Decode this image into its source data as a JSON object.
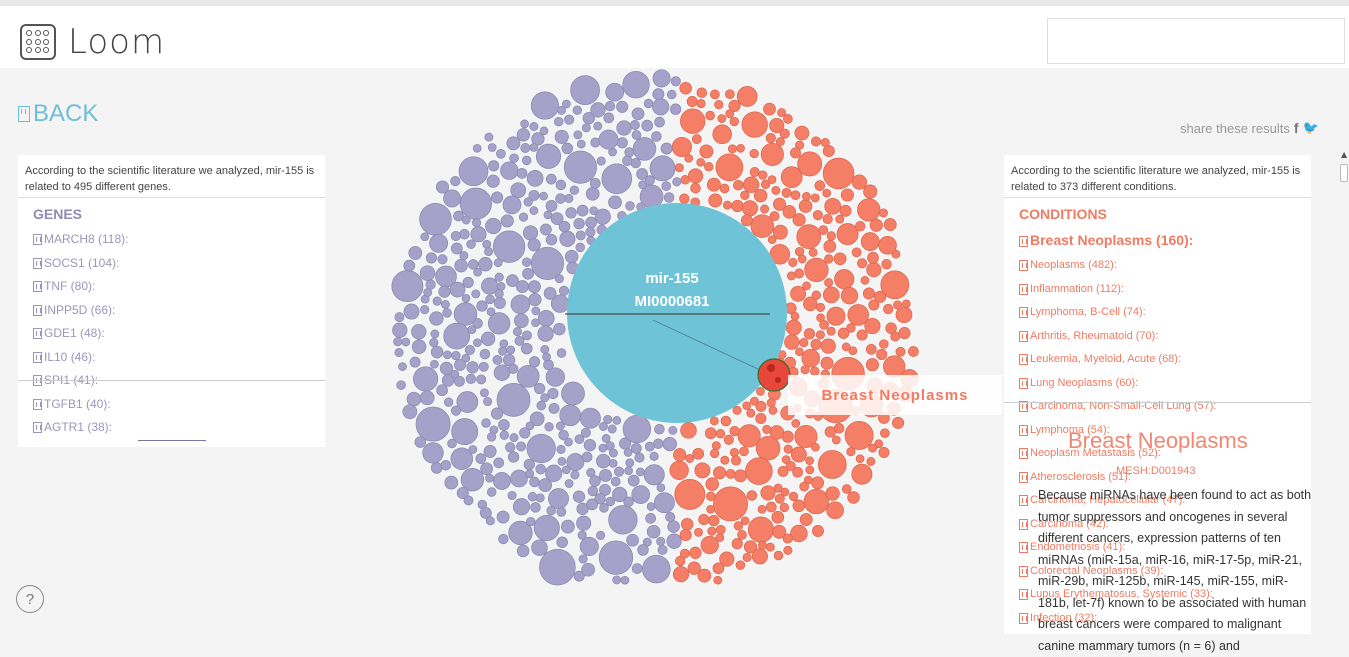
{
  "app": {
    "logo_text": "Loom"
  },
  "nav": {
    "back_label": "BACK"
  },
  "share": {
    "label": "share these results",
    "facebook": "f",
    "twitter": "🐦"
  },
  "genes_panel": {
    "intro": "According to the scientific literature we analyzed, mir-155 is related to 495 different genes.",
    "title": "GENES",
    "items": [
      "MARCH8 (118):",
      "SOCS1 (104):",
      "TNF (80):",
      "INPP5D (66):",
      "GDE1 (48):",
      "IL10 (46):",
      "SPI1 (41):",
      "TGFB1 (40):",
      "AGTR1 (38):"
    ]
  },
  "conditions_panel": {
    "intro": "According to the scientific literature we analyzed, mir-155 is related to 373 different conditions.",
    "title": "CONDITIONS",
    "active": "Breast Neoplasms (160):",
    "items": [
      "Neoplasms (482):",
      "Inflammation (112):",
      "Lymphoma, B-Cell (74):",
      "Arthritis, Rheumatoid (70):",
      "Leukemia, Myeloid, Acute (68):",
      "Lung Neoplasms (60):",
      "Carcinoma, Non-Small-Cell Lung (57):",
      "Lymphoma (54):",
      "Neoplasm Metastasis (52):",
      "Atherosclerosis (51):",
      "Carcinoma, Hepatocellular (47):",
      "Carcinoma (42):",
      "Endometriosis (41):",
      "Colorectal Neoplasms (39):",
      "Lupus Erythematosus, Systemic (33):",
      "Infection (32):"
    ]
  },
  "visualization": {
    "center_name": "mir-155",
    "center_id": "MI0000681",
    "hover_label": "Breast Neoplasms",
    "colors": {
      "genes": "#a5a1c8",
      "conditions": "#f47e66",
      "center": "#6ec4d6",
      "highlight": "#e8473b"
    }
  },
  "detail": {
    "title": "Breast Neoplasms",
    "mesh": "MESH:D001943",
    "text": "Because miRNAs have been found to act as both tumor suppressors and oncogenes in several different cancers, expression patterns of ten miRNAs (miR-15a, miR-16, miR-17-5p, miR-21, miR-29b, miR-125b, miR-145, miR-155, miR-181b, let-7f) known to be associated with human breast cancers were compared to malignant canine mammary tumors (n = 6) and"
  },
  "help": {
    "label": "?"
  }
}
